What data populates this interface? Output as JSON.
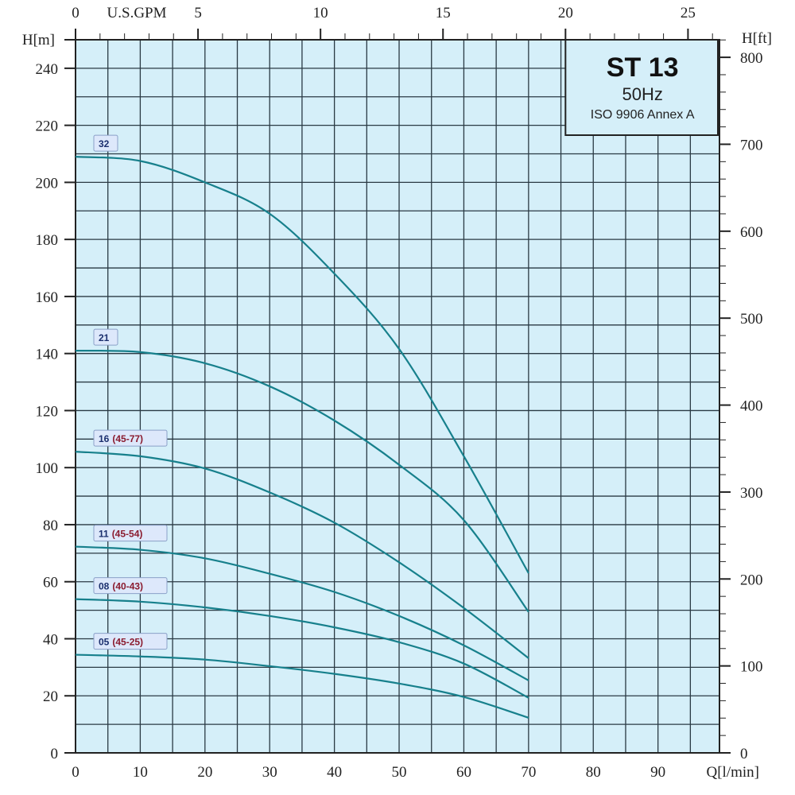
{
  "chart_data": {
    "type": "line",
    "title": "ST 13",
    "subtitle": "50Hz",
    "note": "ISO 9906 Annex A",
    "xlabel": "Q[l/min]",
    "ylabel": "H[m]",
    "y2label": "H[ft]",
    "x2label": "U.S.GPM",
    "xlim": [
      0,
      99.5
    ],
    "ylim": [
      0,
      250
    ],
    "xticks": [
      0,
      10,
      20,
      30,
      40,
      50,
      60,
      70,
      80,
      90
    ],
    "yticks": [
      0,
      20,
      40,
      60,
      80,
      100,
      120,
      140,
      160,
      180,
      200,
      220,
      240
    ],
    "y2ticks": [
      0,
      100,
      200,
      300,
      400,
      500,
      600,
      700,
      800
    ],
    "x2ticks": [
      0,
      5,
      10,
      15,
      20,
      25
    ],
    "grid": true,
    "colors": {
      "background": "#d5eff9",
      "curve": "#17808c",
      "grid": "#2a3a44",
      "label_num": "#1b2f6e",
      "label_range": "#8a1a2e"
    },
    "x": [
      0,
      10,
      20,
      30,
      40,
      50,
      60,
      70
    ],
    "series": [
      {
        "name": "32",
        "range": "",
        "values": [
          209,
          207.5,
          200,
          189,
          168,
          141.6,
          104,
          63
        ]
      },
      {
        "name": "21",
        "range": "",
        "values": [
          141,
          140.5,
          136.6,
          128.5,
          116.5,
          101,
          81.6,
          49.4
        ]
      },
      {
        "name": "16",
        "range": "(45-77)",
        "values": [
          105.6,
          104,
          99.7,
          91.3,
          80.7,
          66.8,
          50.8,
          33.2
        ]
      },
      {
        "name": "11",
        "range": "(45-54)",
        "values": [
          72.3,
          71.2,
          68.2,
          62.8,
          56.4,
          48,
          37.7,
          25.4
        ]
      },
      {
        "name": "08",
        "range": "(40-43)",
        "values": [
          53.9,
          53,
          51,
          48,
          44,
          38.8,
          31.3,
          19.3
        ]
      },
      {
        "name": "05",
        "range": "(45-25)",
        "values": [
          34.4,
          33.8,
          32.7,
          30.4,
          27.7,
          24.3,
          19.6,
          12.3
        ]
      }
    ]
  }
}
